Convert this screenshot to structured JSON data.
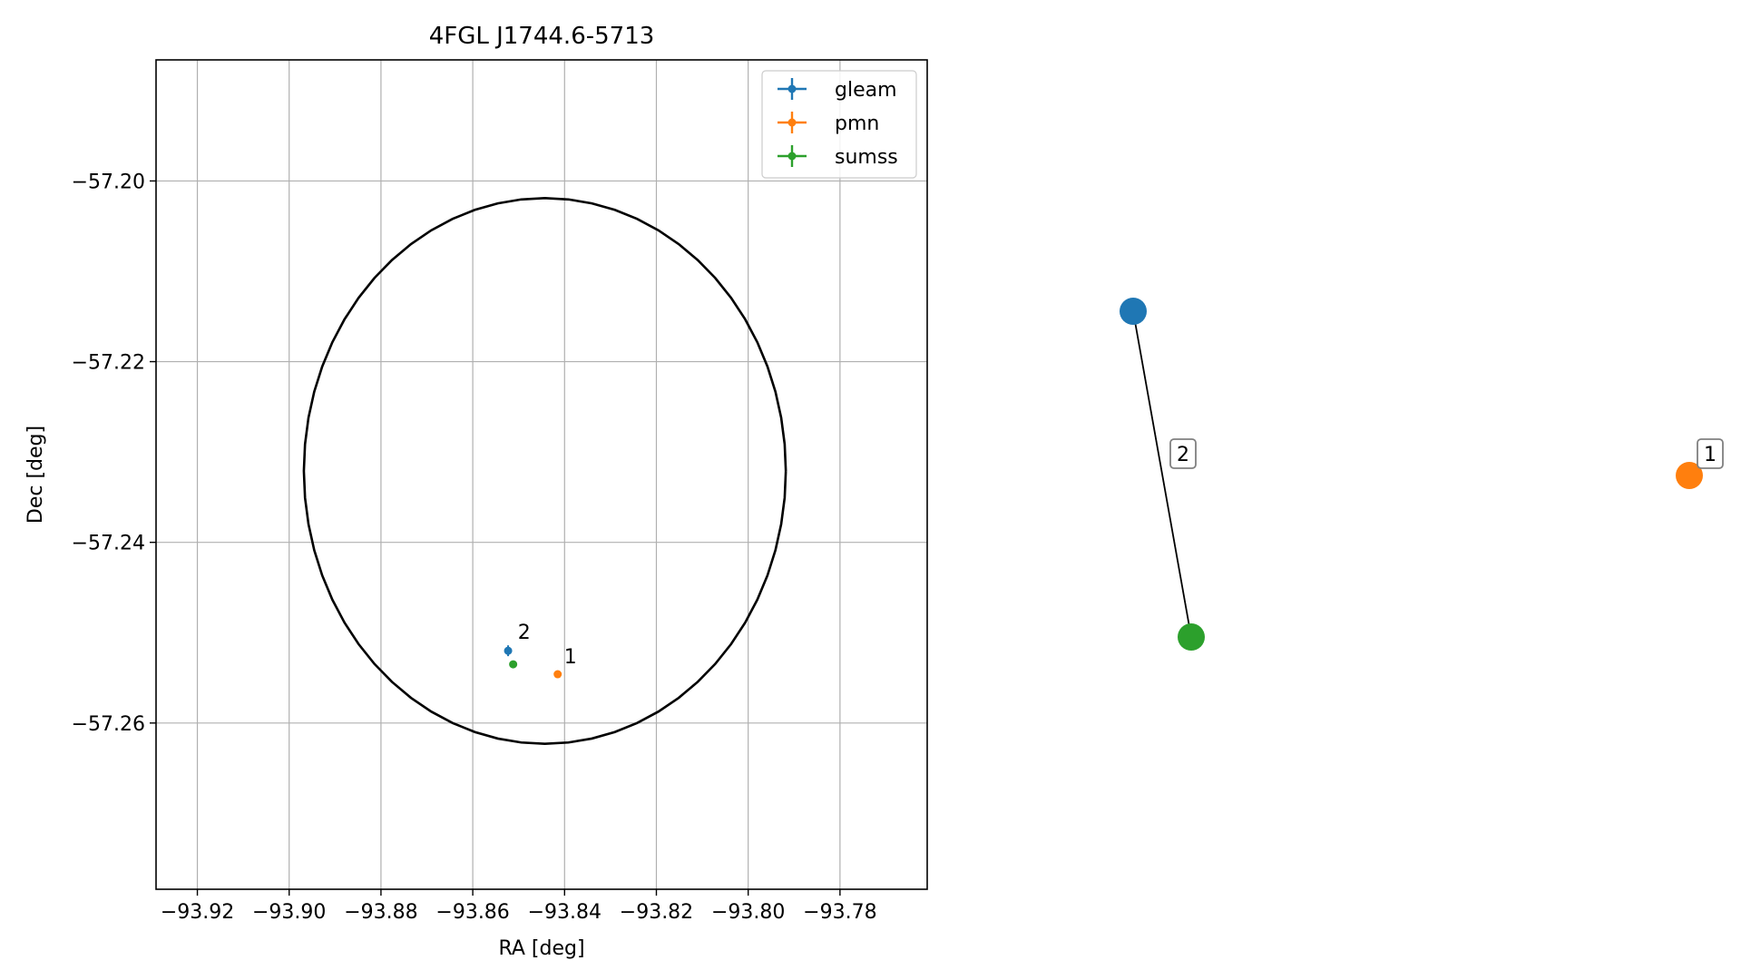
{
  "chart_data": [
    {
      "type": "scatter",
      "title": "4FGL J1744.6-5713",
      "xlabel": "RA [deg]",
      "ylabel": "Dec [deg]",
      "xlim": [
        -93.929,
        -93.761
      ],
      "ylim": [
        -57.2784,
        -57.1866
      ],
      "xticks": [
        -93.92,
        -93.9,
        -93.88,
        -93.86,
        -93.84,
        -93.82,
        -93.8,
        -93.78
      ],
      "xtick_labels": [
        "−93.92",
        "−93.90",
        "−93.88",
        "−93.86",
        "−93.84",
        "−93.82",
        "−93.80",
        "−93.78"
      ],
      "yticks": [
        -57.2,
        -57.22,
        -57.24,
        -57.26
      ],
      "ytick_labels": [
        "−57.20",
        "−57.22",
        "−57.24",
        "−57.26"
      ],
      "grid": true,
      "legend_position": "top-right",
      "ellipse": {
        "center": [
          -93.8443,
          -57.2321
        ],
        "half_width_ra": 0.0525,
        "half_height_dec": 0.0302,
        "color": "#000000"
      },
      "series": [
        {
          "name": "gleam",
          "color": "#1f77b4",
          "points": [
            {
              "x": -93.8523,
              "y": -57.252,
              "xerr": 0.0004,
              "yerr": 0.0006
            }
          ]
        },
        {
          "name": "pmn",
          "color": "#ff7f0e",
          "points": [
            {
              "x": -93.8415,
              "y": -57.2546,
              "xerr": 0.0,
              "yerr": 0.0
            }
          ]
        },
        {
          "name": "sumss",
          "color": "#2ca02c",
          "points": [
            {
              "x": -93.8512,
              "y": -57.2535,
              "xerr": 0.0003,
              "yerr": 0.0004
            }
          ]
        }
      ],
      "annotations": [
        {
          "text": "1",
          "x": -93.8401,
          "y": -57.2534
        },
        {
          "text": "2",
          "x": -93.8502,
          "y": -57.2507
        }
      ]
    },
    {
      "type": "network",
      "nodes": [
        {
          "id": "gleam",
          "color": "#1f77b4"
        },
        {
          "id": "sumss",
          "color": "#2ca02c"
        },
        {
          "id": "pmn",
          "color": "#ff7f0e"
        }
      ],
      "edges": [
        {
          "source": "gleam",
          "target": "sumss",
          "label": "2"
        }
      ],
      "isolated_labels": [
        {
          "node": "pmn",
          "label": "1"
        }
      ]
    }
  ]
}
